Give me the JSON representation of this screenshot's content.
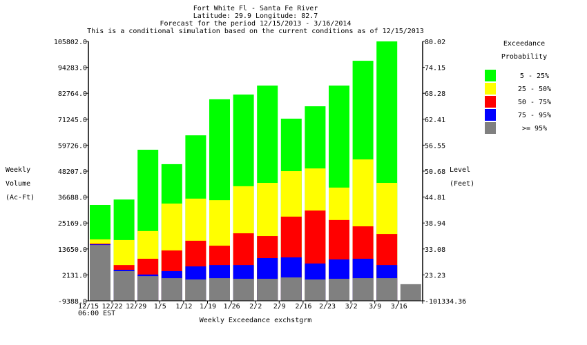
{
  "chart_data": {
    "type": "bar",
    "stacked": true,
    "title_lines": [
      "Fort White Fl - Santa Fe River",
      "Latitude: 29.9    Longitude:  82.7",
      "Forecast for the period 12/15/2013 - 3/16/2014",
      "This is a conditional simulation based on the current conditions as of 12/15/2013"
    ],
    "xlabel": "Weekly Exceedance exchstgrm",
    "x_sublabel": "06:00   EST",
    "ylabel_left": [
      "Weekly",
      "Volume",
      "(Ac-Ft)"
    ],
    "ylabel_right": [
      "Level",
      "(Feet)"
    ],
    "ylim": [
      -9388.0,
      105802.0
    ],
    "yticks_left": [
      "105802.0",
      "94283.0",
      "82764.0",
      "71245.0",
      "59726.0",
      "48207.0",
      "36688.0",
      "25169.0",
      "13650.0",
      "2131.0",
      "-9388.0"
    ],
    "yticks_right": [
      "80.02",
      "74.15",
      "68.28",
      "62.41",
      "56.55",
      "50.68",
      "44.81",
      "38.94",
      "33.08",
      "23.23",
      "-101334.36"
    ],
    "categories": [
      "12/15",
      "12/22",
      "12/29",
      "1/5",
      "1/12",
      "1/19",
      "1/26",
      "2/2",
      "2/9",
      "2/16",
      "2/23",
      "3/2",
      "3/9",
      "3/16"
    ],
    "legend": {
      "title": [
        "Exceedance",
        "Probability"
      ],
      "placement": "right"
    },
    "series": [
      {
        "name": ">= 95%",
        "color": "#808080",
        "values": [
          15400,
          3800,
          1600,
          700,
          100,
          700,
          400,
          400,
          1000,
          100,
          400,
          700,
          700,
          -2000
        ]
      },
      {
        "name": "75 - 95%",
        "color": "#0000ff",
        "values": [
          15700,
          4400,
          2300,
          3800,
          5900,
          6500,
          6500,
          9600,
          9900,
          7200,
          9000,
          9300,
          6500,
          null
        ]
      },
      {
        "name": "50 - 75%",
        "color": "#ff0000",
        "values": [
          16000,
          6500,
          9300,
          13000,
          17300,
          15100,
          20600,
          19400,
          28000,
          30700,
          26500,
          23700,
          20300,
          null
        ]
      },
      {
        "name": "25 - 50%",
        "color": "#ffff00",
        "values": [
          17900,
          17600,
          21600,
          33800,
          36000,
          35300,
          41500,
          43000,
          48200,
          49400,
          40900,
          53400,
          43000,
          null
        ]
      },
      {
        "name": "5 - 25%",
        "color": "#00ff00",
        "values": [
          33200,
          35600,
          57700,
          51300,
          64100,
          80100,
          82200,
          86200,
          71500,
          77000,
          86200,
          97200,
          105800,
          null
        ]
      }
    ],
    "value_note": "values are cumulative top-of-segment weekly volumes (Ac-Ft)"
  }
}
